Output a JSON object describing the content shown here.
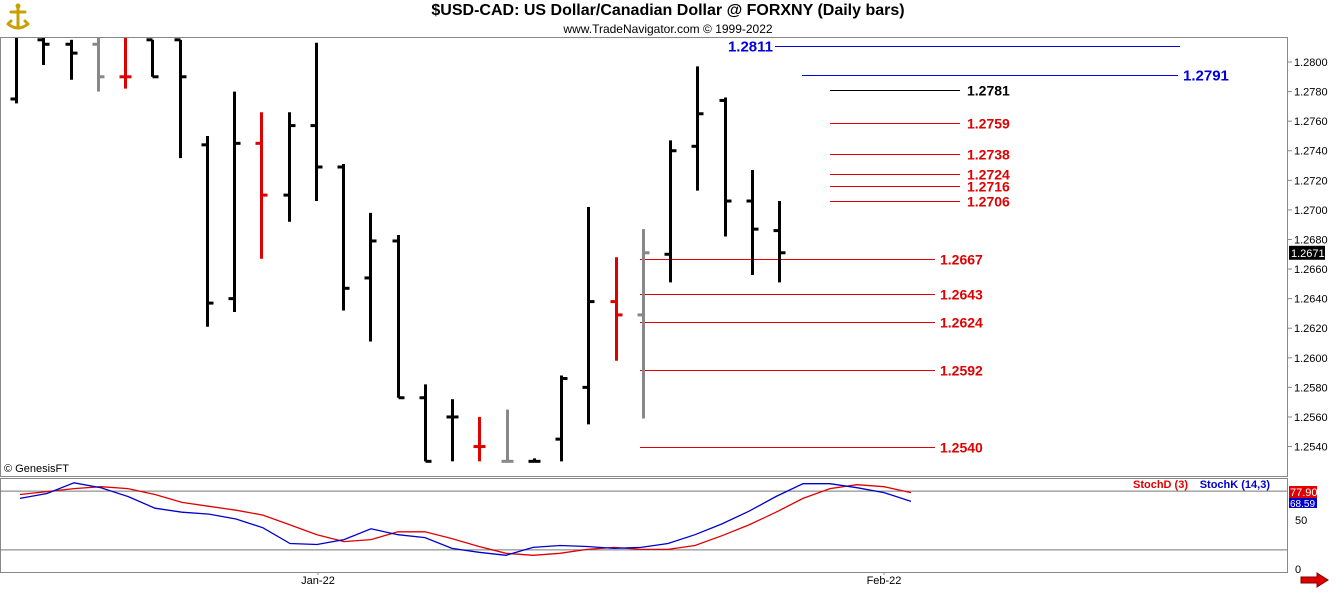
{
  "header": {
    "title": "$USD-CAD:  US Dollar/Canadian Dollar @ FORXNY  (Daily bars)",
    "subtitle": "www.TradeNavigator.com © 1999-2022",
    "watermark": "© GenesisFT"
  },
  "colors": {
    "bar_black": "#000000",
    "bar_red": "#e00000",
    "bar_gray": "#888888",
    "level_red": "#e00000",
    "level_blue": "#0000dd",
    "stochd": "#e00000",
    "stochk": "#0000cc",
    "last_price_bg": "#000000"
  },
  "chart_data": [
    {
      "type": "ohlc",
      "title": "$USD-CAD:  US Dollar/Canadian Dollar @ FORXNY  (Daily bars)",
      "ylim": [
        1.253,
        1.282
      ],
      "y_ticks": [
        "1.2800",
        "1.2780",
        "1.2760",
        "1.2740",
        "1.2720",
        "1.2700",
        "1.2680",
        "1.2660",
        "1.2640",
        "1.2620",
        "1.2600",
        "1.2580",
        "1.2560",
        "1.2540"
      ],
      "x_labels": [
        "Jan-22",
        "Feb-22"
      ],
      "last_price": "1.2671",
      "bars": [
        {
          "open": 1.2775,
          "high": 1.282,
          "low": 1.2772,
          "close": 1.282,
          "color": "black"
        },
        {
          "open": 1.2815,
          "high": 1.2825,
          "low": 1.2798,
          "close": 1.2812,
          "color": "black"
        },
        {
          "open": 1.2812,
          "high": 1.2815,
          "low": 1.2788,
          "close": 1.2806,
          "color": "black"
        },
        {
          "open": 1.2812,
          "high": 1.282,
          "low": 1.278,
          "close": 1.279,
          "color": "gray"
        },
        {
          "open": 1.279,
          "high": 1.2818,
          "low": 1.2782,
          "close": 1.279,
          "color": "red"
        },
        {
          "open": 1.2815,
          "high": 1.2815,
          "low": 1.279,
          "close": 1.279,
          "color": "black"
        },
        {
          "open": 1.2815,
          "high": 1.2815,
          "low": 1.2735,
          "close": 1.279,
          "color": "black"
        },
        {
          "open": 1.2744,
          "high": 1.275,
          "low": 1.2621,
          "close": 1.2637,
          "color": "black"
        },
        {
          "open": 1.264,
          "high": 1.278,
          "low": 1.2631,
          "close": 1.2745,
          "color": "black"
        },
        {
          "open": 1.2745,
          "high": 1.2766,
          "low": 1.2667,
          "close": 1.271,
          "color": "red"
        },
        {
          "open": 1.271,
          "high": 1.2766,
          "low": 1.2692,
          "close": 1.2757,
          "color": "black"
        },
        {
          "open": 1.2757,
          "high": 1.2813,
          "low": 1.2706,
          "close": 1.2729,
          "color": "black"
        },
        {
          "open": 1.2729,
          "high": 1.2731,
          "low": 1.2632,
          "close": 1.2647,
          "color": "black"
        },
        {
          "open": 1.2654,
          "high": 1.2698,
          "low": 1.2611,
          "close": 1.2679,
          "color": "black"
        },
        {
          "open": 1.2679,
          "high": 1.2683,
          "low": 1.2573,
          "close": 1.2573,
          "color": "black"
        },
        {
          "open": 1.2573,
          "high": 1.2582,
          "low": 1.253,
          "close": 1.253,
          "color": "black"
        },
        {
          "open": 1.256,
          "high": 1.2572,
          "low": 1.253,
          "close": 1.256,
          "color": "black"
        },
        {
          "open": 1.254,
          "high": 1.256,
          "low": 1.253,
          "close": 1.254,
          "color": "red"
        },
        {
          "open": 1.253,
          "high": 1.2565,
          "low": 1.253,
          "close": 1.253,
          "color": "gray"
        },
        {
          "open": 1.253,
          "high": 1.2532,
          "low": 1.253,
          "close": 1.253,
          "color": "black"
        },
        {
          "open": 1.2545,
          "high": 1.2588,
          "low": 1.253,
          "close": 1.2586,
          "color": "black"
        },
        {
          "open": 1.258,
          "high": 1.2702,
          "low": 1.2555,
          "close": 1.2638,
          "color": "black"
        },
        {
          "open": 1.2638,
          "high": 1.2668,
          "low": 1.2598,
          "close": 1.2629,
          "color": "red"
        },
        {
          "open": 1.2629,
          "high": 1.2687,
          "low": 1.2559,
          "close": 1.2671,
          "color": "gray"
        },
        {
          "open": 1.267,
          "high": 1.2747,
          "low": 1.2651,
          "close": 1.274,
          "color": "black"
        },
        {
          "open": 1.2743,
          "high": 1.2797,
          "low": 1.2713,
          "close": 1.2765,
          "color": "black"
        },
        {
          "open": 1.2774,
          "high": 1.2776,
          "low": 1.2682,
          "close": 1.2706,
          "color": "black"
        },
        {
          "open": 1.2706,
          "high": 1.2727,
          "low": 1.2656,
          "close": 1.2687,
          "color": "black"
        },
        {
          "open": 1.2686,
          "high": 1.2706,
          "low": 1.2651,
          "close": 1.2671,
          "color": "black"
        }
      ],
      "levels": [
        {
          "value": 1.2811,
          "label": "1.2811",
          "color": "blue"
        },
        {
          "value": 1.2791,
          "label": "1.2791",
          "color": "blue"
        },
        {
          "value": 1.2781,
          "label": "1.2781",
          "color": "black"
        },
        {
          "value": 1.2759,
          "label": "1.2759",
          "color": "red"
        },
        {
          "value": 1.2738,
          "label": "1.2738",
          "color": "red"
        },
        {
          "value": 1.2724,
          "label": "1.2724",
          "color": "red"
        },
        {
          "value": 1.2716,
          "label": "1.2716",
          "color": "red"
        },
        {
          "value": 1.2706,
          "label": "1.2706",
          "color": "red"
        },
        {
          "value": 1.2667,
          "label": "1.2667",
          "color": "red"
        },
        {
          "value": 1.2643,
          "label": "1.2643",
          "color": "red"
        },
        {
          "value": 1.2624,
          "label": "1.2624",
          "color": "red"
        },
        {
          "value": 1.2592,
          "label": "1.2592",
          "color": "red"
        },
        {
          "value": 1.254,
          "label": "1.2540",
          "color": "red"
        }
      ]
    },
    {
      "type": "line",
      "ylim": [
        0,
        100
      ],
      "y_ticks": [
        "50",
        "0"
      ],
      "reference_lines": [
        80,
        20
      ],
      "legend": [
        "StochD (3)",
        "StochK (14,3)"
      ],
      "last_values": {
        "stochd": "77.90",
        "stochk": "68.59"
      },
      "series": [
        {
          "name": "StochD (3)",
          "color": "red",
          "values": [
            76,
            79,
            82,
            84,
            82,
            76,
            68,
            64,
            60,
            55,
            45,
            35,
            28,
            30,
            38,
            38,
            31,
            23,
            16,
            14,
            16,
            20,
            22,
            20,
            20,
            24,
            34,
            45,
            58,
            72,
            82,
            86,
            84,
            78
          ]
        },
        {
          "name": "StochK (14,3)",
          "color": "blue",
          "values": [
            72,
            77,
            88,
            83,
            74,
            62,
            58,
            56,
            51,
            42,
            26,
            25,
            30,
            41,
            35,
            32,
            21,
            17,
            14,
            22,
            24,
            23,
            21,
            22,
            26,
            35,
            46,
            59,
            74,
            87,
            87,
            83,
            78,
            69
          ]
        }
      ]
    }
  ]
}
